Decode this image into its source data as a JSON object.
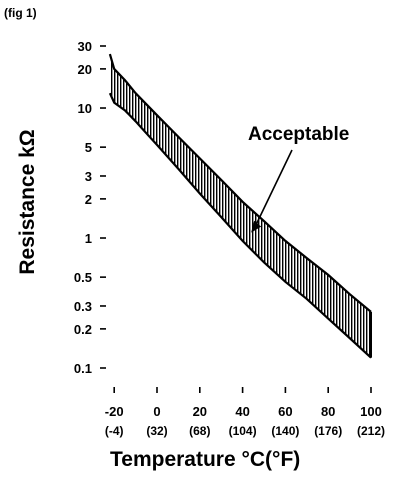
{
  "figure_label": "(fig 1)",
  "chart_data": {
    "type": "area",
    "xlabel": "Temperature °C(°F)",
    "ylabel": "Resistance kΩ",
    "yscale": "log",
    "xlim": [
      -25,
      100
    ],
    "ylim": [
      0.1,
      30
    ],
    "grid": false,
    "legend": "none",
    "x_ticks_c": [
      -20,
      0,
      20,
      40,
      60,
      80,
      100
    ],
    "x_tick_labels_c": [
      "-20",
      "0",
      "20",
      "40",
      "60",
      "80",
      "100"
    ],
    "x_tick_labels_f": [
      "(-4)",
      "(32)",
      "(68)",
      "(104)",
      "(140)",
      "(176)",
      "(212)"
    ],
    "y_ticks": [
      0.1,
      0.2,
      0.3,
      0.5,
      1,
      2,
      3,
      5,
      10,
      20,
      30
    ],
    "y_tick_labels": [
      "0.1",
      "0.2",
      "0.3",
      "0.5",
      "1",
      "2",
      "3",
      "5",
      "10",
      "20",
      "30"
    ],
    "band": {
      "x": [
        -22,
        -20,
        -15,
        -10,
        -5,
        0,
        10,
        20,
        30,
        40,
        50,
        60,
        70,
        80,
        90,
        100
      ],
      "upper": [
        26,
        20,
        16.4,
        13,
        10.7,
        8.8,
        6,
        4.1,
        2.8,
        1.9,
        1.35,
        0.95,
        0.7,
        0.52,
        0.37,
        0.27
      ],
      "lower": [
        13,
        11,
        9.6,
        7.9,
        6.4,
        5.2,
        3.4,
        2.2,
        1.45,
        0.95,
        0.65,
        0.46,
        0.34,
        0.24,
        0.17,
        0.12
      ]
    },
    "annotation": {
      "text": "Acceptable",
      "x": 44,
      "y": 1.1
    }
  }
}
